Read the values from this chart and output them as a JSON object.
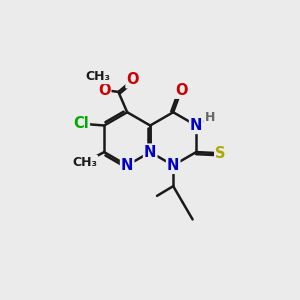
{
  "bg_color": "#ebebeb",
  "bond_color": "#1a1a1a",
  "bond_width": 1.8,
  "atom_colors": {
    "C": "#1a1a1a",
    "N": "#0000cc",
    "O": "#cc0000",
    "S": "#aaaa00",
    "Cl": "#00aa00",
    "H": "#666666"
  },
  "font_size": 10.5,
  "small_font_size": 9
}
